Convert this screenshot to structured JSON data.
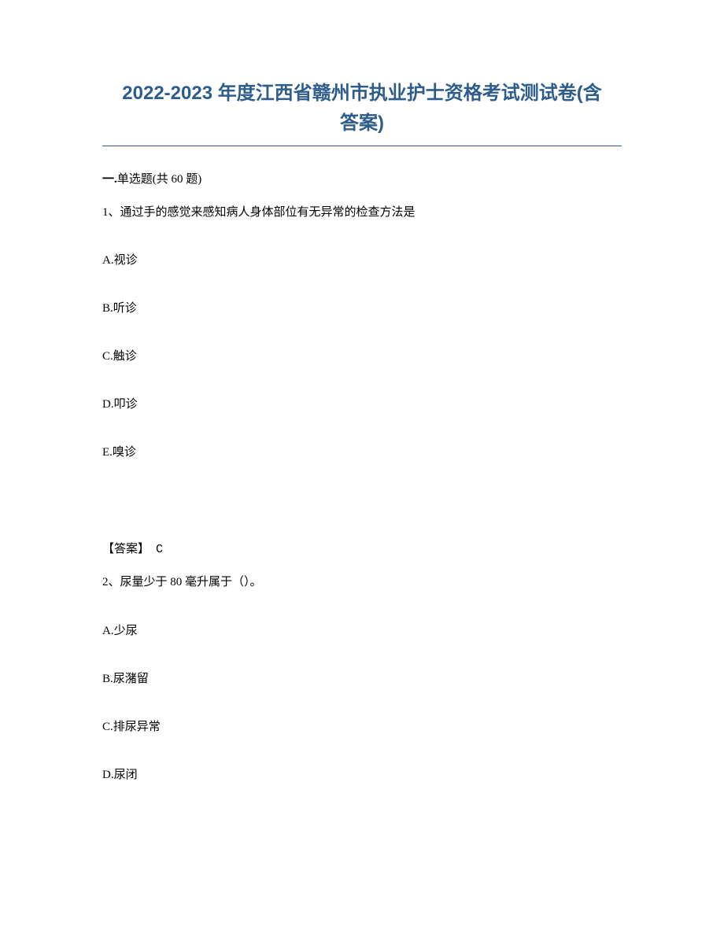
{
  "title": {
    "line1": "2022-2023 年度江西省赣州市执业护士资格考试测试卷(含",
    "line2": "答案)",
    "color": "#2e5d8c",
    "fontsize": 24
  },
  "section": {
    "prefix": "一.",
    "label": "单选题(共 60 题)"
  },
  "questions": [
    {
      "number": "1、",
      "text": "通过手的感觉来感知病人身体部位有无异常的检查方法是",
      "options": [
        {
          "key": "A.",
          "text": "视诊"
        },
        {
          "key": "B.",
          "text": "听诊"
        },
        {
          "key": "C.",
          "text": "触诊"
        },
        {
          "key": "D.",
          "text": "叩诊"
        },
        {
          "key": "E.",
          "text": "嗅诊"
        }
      ],
      "answer": {
        "label": "【答案】",
        "value": "C"
      }
    },
    {
      "number": "2、",
      "text": "尿量少于 80 毫升属于（）。",
      "options": [
        {
          "key": "A.",
          "text": "少尿"
        },
        {
          "key": "B.",
          "text": "尿潴留"
        },
        {
          "key": "C.",
          "text": "排尿异常"
        },
        {
          "key": "D.",
          "text": "尿闭"
        }
      ]
    }
  ],
  "colors": {
    "text": "#000000",
    "title": "#2e5d8c",
    "background": "#ffffff"
  }
}
